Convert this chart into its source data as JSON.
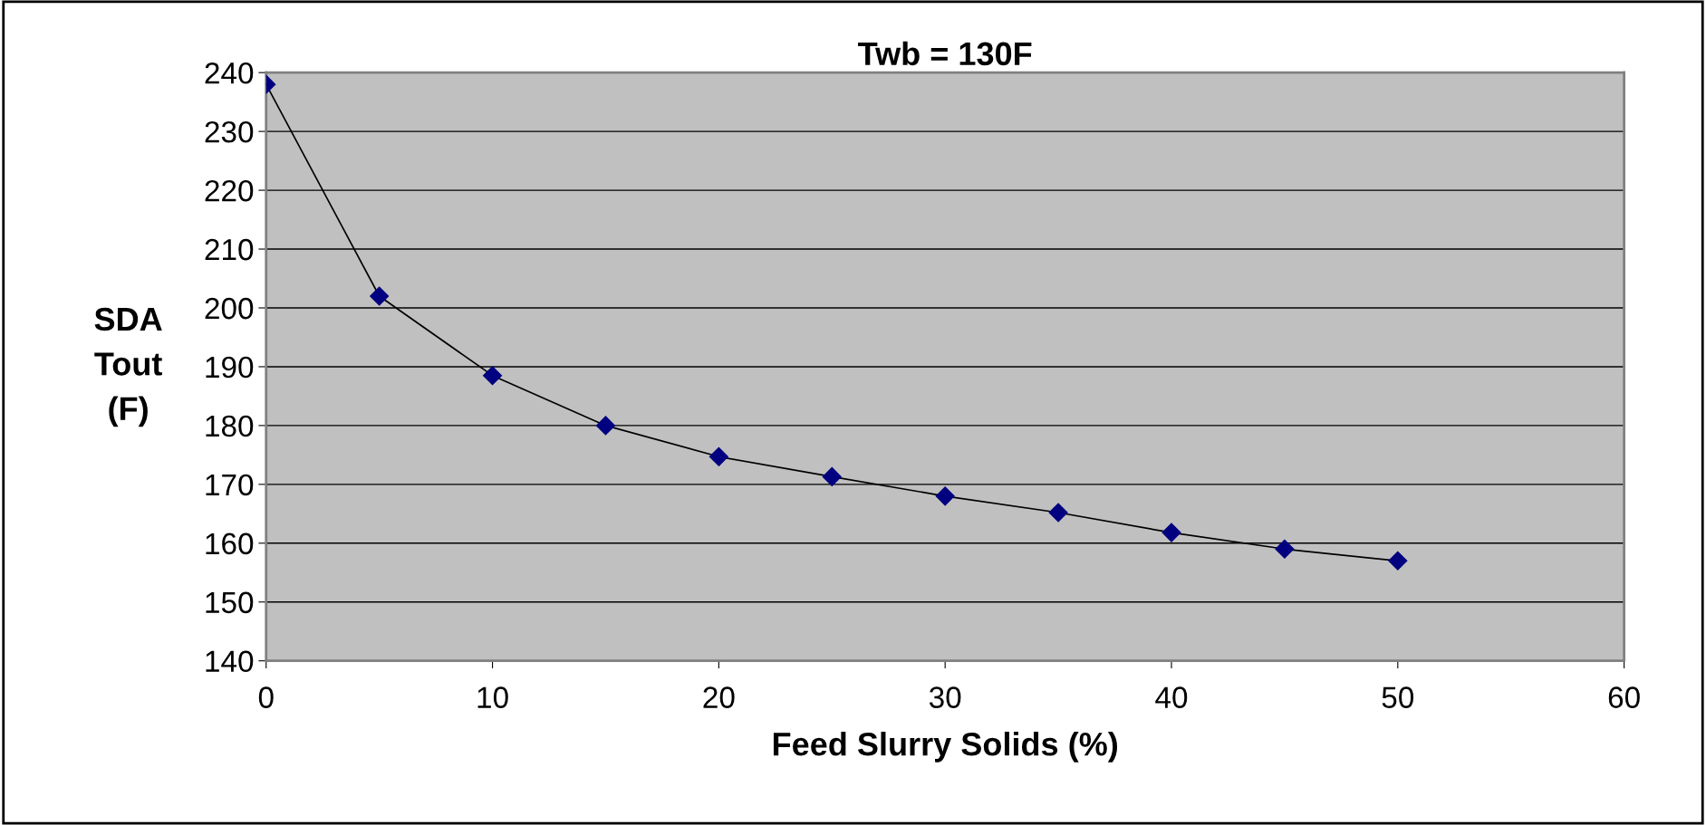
{
  "chart_data": {
    "type": "line",
    "title": "Twb = 130F",
    "xlabel": "Feed Slurry Solids (%)",
    "ylabel": "SDA\nTout\n(F)",
    "x": [
      0,
      5,
      10,
      15,
      20,
      25,
      30,
      35,
      40,
      45,
      50
    ],
    "series": [
      {
        "color": "#000080",
        "values": [
          238,
          202,
          188.5,
          180,
          174.7,
          171.3,
          168,
          165.2,
          161.8,
          159,
          157
        ]
      }
    ],
    "xlim": [
      0,
      60
    ],
    "xticks": [
      0,
      10,
      20,
      30,
      40,
      50,
      60
    ],
    "ylim": [
      140,
      240
    ],
    "yticks": [
      140,
      150,
      160,
      170,
      180,
      190,
      200,
      210,
      220,
      230,
      240
    ],
    "grid": "y",
    "marker": "diamond",
    "line_style": "solid"
  }
}
